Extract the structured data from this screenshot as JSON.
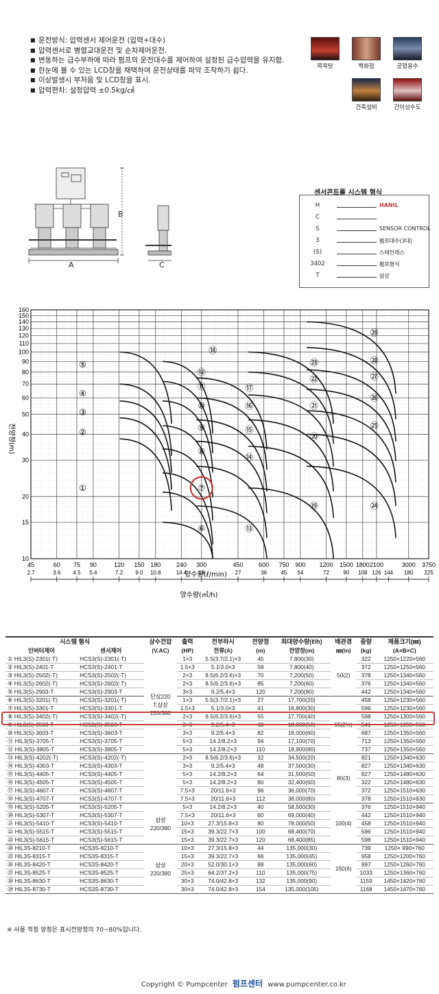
{
  "features": [
    "운전방식: 압력센서 제어운전 (압력+대수)",
    "압력센서로 병렬교대운전 및 순차제어운전.",
    "변동하는 급수부하에 따라 펌프의 운전대수를 제어하여 설정된 급수압력을 유지함.",
    "한눈에 볼 수 있는 LCD창을 채택하여 운전상태를 파악 조작하기 쉽다.",
    "이상발생시 부저음 및 LCD창을 표시.",
    "압력편차: 설정압력 ±0.5kg/㎠"
  ],
  "applications": [
    "목욕탕",
    "백화점",
    "공업용수",
    "건축설비",
    "간이상수도"
  ],
  "dims": {
    "a": "A",
    "b": "B",
    "c": "C"
  },
  "model": {
    "title": "센서콘트롤 시스템 형식",
    "rows": [
      {
        "k": "H",
        "v": "HANIL",
        "red": true
      },
      {
        "k": "C",
        "v": ""
      },
      {
        "k": "S",
        "v": "SENSOR CONTROL"
      },
      {
        "k": "3",
        "v": "펌프대수(3대)"
      },
      {
        "k": "(S)",
        "v": "스테인레스"
      },
      {
        "k": "3402",
        "v": "펌프형식"
      },
      {
        "k": "T",
        "v": "삼상"
      }
    ]
  },
  "chart_data": {
    "type": "area",
    "ylabel": "전양정(m)",
    "xlabel": "양수량(ℓ/min)",
    "xlabel2": "양수량(㎥/h)",
    "scale": "log-log",
    "y_ticks": [
      10,
      15,
      20,
      30,
      40,
      50,
      60,
      70,
      80,
      90,
      100,
      110,
      120,
      130,
      140,
      150,
      160
    ],
    "x_ticks": [
      45,
      60,
      75,
      90,
      120,
      150,
      180,
      240,
      300,
      450,
      600,
      750,
      900,
      1200,
      1500,
      1800,
      2100,
      3000,
      3750
    ],
    "x2_ticks": [
      "2.7",
      "3.6",
      "4.5",
      "5.4",
      "7.2",
      "9.0",
      "10.8",
      "14.4",
      "18",
      "27",
      "36",
      "45",
      "54",
      "72",
      "90",
      "108",
      "126",
      "144",
      "180",
      "225"
    ],
    "regions": [
      {
        "id": "①",
        "x": 80,
        "y": 22
      },
      {
        "id": "②",
        "x": 80,
        "y": 41
      },
      {
        "id": "③",
        "x": 80,
        "y": 51
      },
      {
        "id": "④",
        "x": 80,
        "y": 63
      },
      {
        "id": "⑤",
        "x": 80,
        "y": 87
      },
      {
        "id": "⑥",
        "x": 300,
        "y": 14
      },
      {
        "id": "⑦",
        "x": 300,
        "y": 22
      },
      {
        "id": "⑧",
        "x": 300,
        "y": 33
      },
      {
        "id": "⑨",
        "x": 300,
        "y": 43
      },
      {
        "id": "⑩",
        "x": 300,
        "y": 55
      },
      {
        "id": "⑪",
        "x": 300,
        "y": 68
      },
      {
        "id": "⑫",
        "x": 300,
        "y": 80
      },
      {
        "id": "⑬",
        "x": 510,
        "y": 14
      },
      {
        "id": "⑭",
        "x": 510,
        "y": 31
      },
      {
        "id": "⑮",
        "x": 510,
        "y": 42
      },
      {
        "id": "⑯",
        "x": 510,
        "y": 55
      },
      {
        "id": "⑰",
        "x": 510,
        "y": 67
      },
      {
        "id": "⑱",
        "x": 340,
        "y": 102
      },
      {
        "id": "⑲",
        "x": 1050,
        "y": 18
      },
      {
        "id": "⑳",
        "x": 1050,
        "y": 39
      },
      {
        "id": "㉑",
        "x": 1050,
        "y": 55
      },
      {
        "id": "㉒",
        "x": 1050,
        "y": 74
      },
      {
        "id": "㉓",
        "x": 1050,
        "y": 89
      },
      {
        "id": "㉔",
        "x": 2050,
        "y": 18
      },
      {
        "id": "㉕",
        "x": 2050,
        "y": 44
      },
      {
        "id": "㉖",
        "x": 2050,
        "y": 60
      },
      {
        "id": "㉗",
        "x": 2050,
        "y": 76
      },
      {
        "id": "㉘",
        "x": 2050,
        "y": 91
      },
      {
        "id": "㉙",
        "x": 2050,
        "y": 124
      }
    ],
    "highlight": "⑦"
  },
  "table": {
    "headers": [
      "시스템 형식",
      "상수전압",
      "출력",
      "전부하시",
      "전양정",
      "최대양수량(ℓ/h)",
      "배관경",
      "중량",
      "제품크기(㎜)"
    ],
    "subheaders": [
      "인버터제어",
      "센서제어",
      "(V.AC)",
      "(HP)",
      "전류(A)",
      "(m)",
      "전양정(m)",
      "㎜(in)",
      "(kg)",
      "(A×B×C)"
    ],
    "rows": [
      [
        "① HIL3(S)-2301(-T)",
        "HCS3(S)-2301(-T)",
        "1×3",
        "5.5(3.7/2.1)×3",
        "45",
        "7,800(30)",
        "322",
        "1250×1220×560"
      ],
      [
        "② HIL3(S)-2401-T",
        "HCS3(S)-2401-T",
        "1.5×3",
        "5.1/3.0×3",
        "58",
        "7,800(40)",
        "372",
        "1250×1250×560"
      ],
      [
        "③ HIL3(S)-2502(-T)",
        "HCS3(S)-2502(-T)",
        "2×3",
        "8.5(6.2/3.6)×3",
        "70",
        "7,200(50)",
        "378",
        "1250×1340×560"
      ],
      [
        "④ HIL3(S)-2602(-T)",
        "HCS3(S)-2602(-T)",
        "2×3",
        "8.5(6.2/3.6)×3",
        "85",
        "7,200(60)",
        "376",
        "1250×1340×560"
      ],
      [
        "⑤ HIL3(S)-2903-T",
        "HCS3(S)-2903-T",
        "3×3",
        "9.2/5.4×3",
        "120",
        "7,200(90)",
        "442",
        "1250×1340×560"
      ],
      [
        "⑥ HIL3(S)-3201(-T)",
        "HCS3(S)-3201(-T)",
        "1×3",
        "5.5(3.7/2.1)×3",
        "27",
        "17,700(20)",
        "458",
        "1250×1230×560"
      ],
      [
        "⑦ HIL3(S)-3301-T",
        "HCS3(S)-3301-T",
        "1.5×3",
        "5.1/3.0×3",
        "41",
        "16,800(30)",
        "596",
        "1250×1230×560"
      ],
      [
        "⑧ HIL3(S)-3402(-T)",
        "HCS3(S)-3402(-T)",
        "2×3",
        "8.5(6.2/3.6)×3",
        "55",
        "17,700(40)",
        "598",
        "1250×1300×560"
      ],
      [
        "⑨ HIL3(S)-3503-T",
        "HCS3(S)-3503-T",
        "3×3",
        "9.2/5.4×3",
        "68",
        "18,000(50)",
        "541",
        "1250×1350×560"
      ],
      [
        "⑩ HIL3(S)-3603-T",
        "HCS3(S)-3603-T",
        "3×3",
        "9.2/5.4×3",
        "82",
        "18,000(60)",
        "687",
        "1250×1350×560"
      ],
      [
        "⑪ HIL3(S)-3705-T",
        "HCS3(S)-3705-T",
        "5×3",
        "14.2/8.2×3",
        "94",
        "17,100(70)",
        "713",
        "1250×1350×560"
      ],
      [
        "⑫ HIL3(S)-3805-T",
        "HCS3(S)-3805-T",
        "5×3",
        "14.2/8.2×3",
        "110",
        "18,900(80)",
        "737",
        "1250×1350×560"
      ],
      [
        "⑬ HIL3(S)-4202(-T)",
        "HCS3(S)-4202(-T)",
        "2×3",
        "8.5(6.2/3.6)×3",
        "32",
        "34,500(20)",
        "821",
        "1250×1340×630"
      ],
      [
        "⑭ HIL3(S)-4303-T",
        "HCS3(S)-4303-T",
        "3×3",
        "9.2/5.4×3",
        "48",
        "37,500(30)",
        "827",
        "1250×1340×630"
      ],
      [
        "⑮ HIL3(S)-4405-T",
        "HCS3(S)-4405-T",
        "5×3",
        "14.2/8.2×3",
        "64",
        "31,500(50)",
        "827",
        "1250×1480×630"
      ],
      [
        "⑯ HIL3(S)-4505-T",
        "HCS3(S)-4505-T",
        "5×3",
        "14.2/8.2×3",
        "80",
        "32,400(60)",
        "322",
        "1250×1480×630"
      ],
      [
        "⑰ HIL3(S)-4607-T",
        "HCS3(S)-4607-T",
        "7.5×3",
        "20/11.6×3",
        "96",
        "36,000(70)",
        "372",
        "1250×1510×630"
      ],
      [
        "⑱ HIL3(S)-4707-T",
        "HCS3(S)-4707-T",
        "7.5×3",
        "20/11.6×3",
        "112",
        "36,000(80)",
        "378",
        "1250×1510×630"
      ],
      [
        "⑲ HIL3(S)-5205-T",
        "HCS3(S)-5205-T",
        "5×3",
        "14.2/8.2×3",
        "40",
        "58,500(30)",
        "376",
        "1250×1510×940"
      ],
      [
        "⑳ HIL3(S)-5307-T",
        "HCS3(S)-5307-T",
        "7.5×3",
        "20/11.6×3",
        "60",
        "69,000(40)",
        "442",
        "1250×1510×940"
      ],
      [
        "㉑ HIL3(S)-5410-T",
        "HCS3(S)-5410-T",
        "10×3",
        "27.3/15.8×3",
        "80",
        "78,000(50)",
        "458",
        "1250×1510×940"
      ],
      [
        "㉒ HIL3(S)-5515-T",
        "HCS3(S)-5515-T",
        "15×3",
        "39.3/22.7×3",
        "100",
        "68,400(70)",
        "596",
        "1250×1510×940"
      ],
      [
        "㉓ HIL3(S)-5615-T",
        "HCS3(S)-5615-T",
        "15×3",
        "39.3/22.7×3",
        "120",
        "68,400(85)",
        "598",
        "1250×1510×940"
      ],
      [
        "㉔ HIL3S-8210-T",
        "HCS3S-8210-T",
        "10×3",
        "27.3/15.8×3",
        "44",
        "135,000(30)",
        "739",
        "1250× 990×760"
      ],
      [
        "㉕ HIL3S-8315-T",
        "HCS3S-8315-T",
        "15×3",
        "39.3/22.7×3",
        "66",
        "135,000(45)",
        "958",
        "1250×1200×760"
      ],
      [
        "㉖ HIL3S-8420-T",
        "HCS3S-8420-T",
        "20×3",
        "52.0/30.1×3",
        "88",
        "135,000(60)",
        "997",
        "1250×1260×760"
      ],
      [
        "㉗ HIL3S-8525-T",
        "HCS3S-8525-T",
        "25×3",
        "64.2/37.2×3",
        "110",
        "135,000(75)",
        "1033",
        "1250×1360×760"
      ],
      [
        "㉘ HIL3S-8630-T",
        "HCS3S-8630-T",
        "30×3",
        "74.0/42.8×3",
        "132",
        "135,000(90)",
        "1159",
        "1450×1420×760"
      ],
      [
        "㉙ HIL3S-8730-T",
        "HCS3S-8730-T",
        "30×3",
        "74.0/42.8×3",
        "154",
        "135,000(105)",
        "1168",
        "1450×1470×760"
      ]
    ],
    "voltage_groups": [
      {
        "rows": [
          0,
          11
        ],
        "text": "단상220\nT:삼상\n220/380"
      },
      {
        "rows": [
          12,
          17
        ],
        "text": ""
      },
      {
        "rows": [
          18,
          22
        ],
        "text": "삼상\n220/380"
      },
      {
        "rows": [
          23,
          28
        ],
        "text": "삼상\n220/380"
      }
    ],
    "pipe_groups": [
      {
        "rows": [
          0,
          4
        ],
        "text": "50(2)"
      },
      {
        "rows": [
          5,
          11
        ],
        "text": "65(2½)"
      },
      {
        "rows": [
          12,
          17
        ],
        "text": "80(3)"
      },
      {
        "rows": [
          18,
          22
        ],
        "text": "100(4)"
      },
      {
        "rows": [
          23,
          28
        ],
        "text": "150(6)"
      }
    ],
    "note": "※ 사용 적정 양정은 표시전양정의 70~80%입니다."
  },
  "footer": {
    "copyright": "Copyright © Pumpcenter",
    "logo": "펌프센터",
    "url": "www.pumpcenter.co.kr"
  },
  "colors": {
    "highlight": "#c43a3a",
    "brand": "#1d4f9a",
    "grid": "#8aa3c9"
  }
}
